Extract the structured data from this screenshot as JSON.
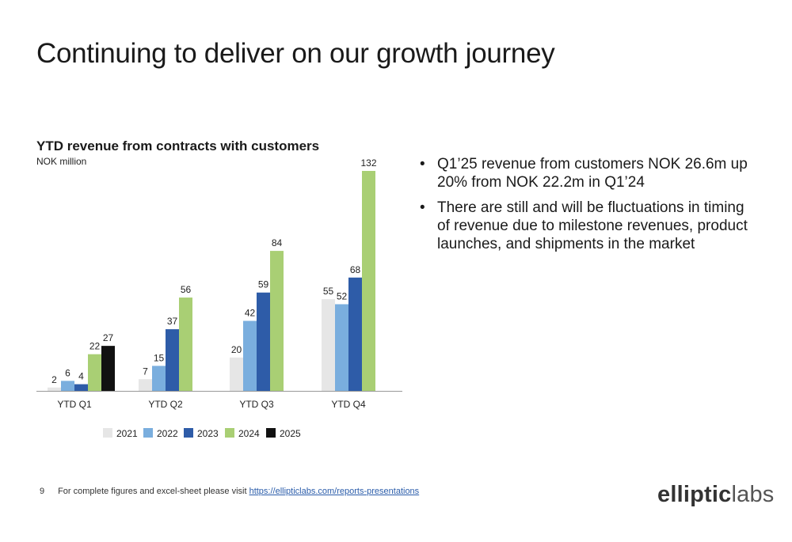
{
  "slide": {
    "title": "Continuing to deliver on our growth journey",
    "page_number": "9",
    "footer_text": "For complete figures and excel-sheet please visit ",
    "footer_link": "https://ellipticlabs.com/reports-presentations",
    "logo_part1": "elliptic",
    "logo_part2": "labs"
  },
  "bullets": [
    "Q1’25 revenue from customers NOK 26.6m up 20% from NOK 22.2m in Q1’24",
    "There are still and will be fluctuations in timing of revenue due to milestone revenues, product launches, and shipments in the market"
  ],
  "chart_data": {
    "type": "bar",
    "title": "YTD revenue from contracts with customers",
    "subtitle": "NOK million",
    "categories": [
      "YTD Q1",
      "YTD Q2",
      "YTD Q3",
      "YTD Q4"
    ],
    "series": [
      {
        "name": "2021",
        "color": "#e6e6e6",
        "values": [
          2,
          7,
          20,
          55
        ]
      },
      {
        "name": "2022",
        "color": "#7aaede",
        "values": [
          6,
          15,
          42,
          52
        ]
      },
      {
        "name": "2023",
        "color": "#2e5ca8",
        "values": [
          4,
          37,
          59,
          68
        ]
      },
      {
        "name": "2024",
        "color": "#a9cf74",
        "values": [
          22,
          56,
          84,
          132
        ]
      },
      {
        "name": "2025",
        "color": "#111111",
        "values": [
          27,
          null,
          null,
          null
        ]
      }
    ],
    "ylim": [
      0,
      132
    ],
    "grid": false,
    "legend": "bottom"
  }
}
